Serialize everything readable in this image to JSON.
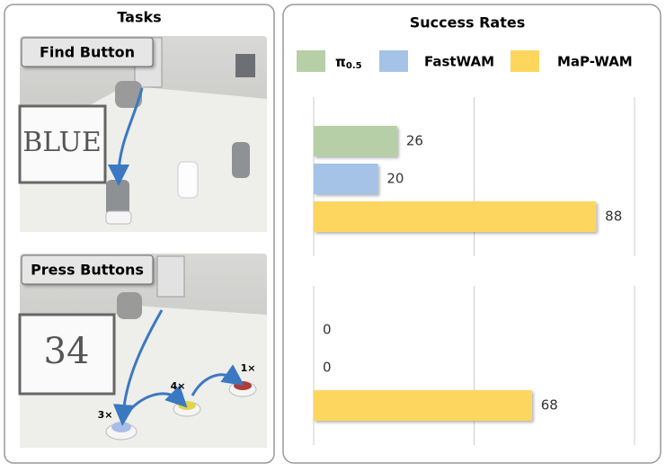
{
  "tasks": {
    "title": "Tasks",
    "items": [
      {
        "label": "Find Button",
        "board_text": "BLUE"
      },
      {
        "label": "Press Buttons",
        "board_text": "34",
        "annotations": [
          "3×",
          "4×",
          "1×"
        ]
      }
    ]
  },
  "chart_data": {
    "type": "hbar",
    "title": "Success Rates",
    "categories": [
      null,
      null
    ],
    "series": [
      {
        "name": "π0.5",
        "color": "#b6cfa6",
        "values": [
          26,
          0
        ]
      },
      {
        "name": "FastWAM",
        "color": "#a5c3e7",
        "values": [
          20,
          0
        ]
      },
      {
        "name": "MaP-WAM",
        "color": "#fdd65e",
        "values": [
          88,
          68
        ]
      }
    ],
    "xlim": [
      0,
      100
    ],
    "xticks": [
      0,
      50,
      100
    ],
    "grid": true
  }
}
